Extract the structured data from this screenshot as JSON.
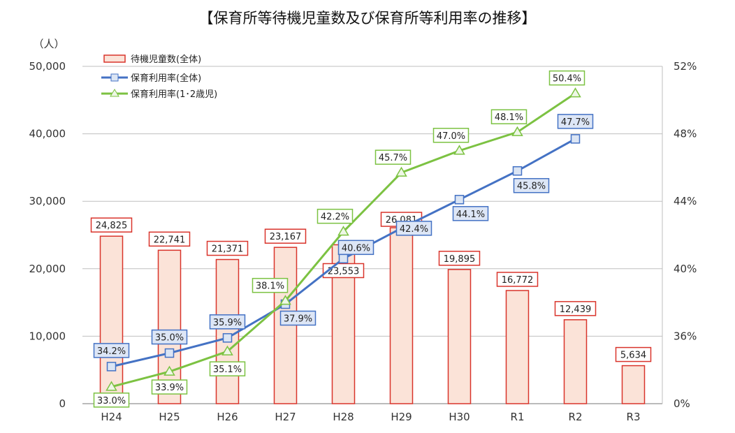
{
  "chart_data": {
    "type": "bar",
    "title": "【保育所等待機児童数及び保育所等利用率の推移】",
    "ylabel_left": "（人）",
    "categories": [
      "H24",
      "H25",
      "H26",
      "H27",
      "H28",
      "H29",
      "H30",
      "R1",
      "R2",
      "R3"
    ],
    "y_left": {
      "ticks": [
        "0",
        "10,000",
        "20,000",
        "30,000",
        "40,000",
        "50,000"
      ],
      "tick_values": [
        0,
        10000,
        20000,
        30000,
        40000,
        50000
      ],
      "ylim": [
        0,
        50000
      ]
    },
    "y_right": {
      "ticks": [
        "0%",
        "36%",
        "40%",
        "44%",
        "48%",
        "52%"
      ],
      "tick_values": [
        32,
        36,
        40,
        44,
        48,
        52
      ],
      "ylim": [
        32,
        52
      ],
      "axis_break": "0% placed at the baseline; scale runs 32%–52%"
    },
    "series": [
      {
        "name": "待機児童数(全体)",
        "type": "bar",
        "axis": "left",
        "color": "#fbe3d8",
        "stroke": "#d9342b",
        "values": [
          24825,
          22741,
          21371,
          23167,
          23553,
          26081,
          19895,
          16772,
          12439,
          5634
        ],
        "labels": [
          "24,825",
          "22,741",
          "21,371",
          "23,167",
          "23,553",
          "26,081",
          "19,895",
          "16,772",
          "12,439",
          "5,634"
        ]
      },
      {
        "name": "保育利用率(全体)",
        "type": "line",
        "axis": "right",
        "color": "#4472c4",
        "marker": "square",
        "values": [
          34.2,
          35.0,
          35.9,
          37.9,
          40.6,
          42.4,
          44.1,
          45.8,
          47.7,
          null
        ],
        "labels": [
          "34.2%",
          "35.0%",
          "35.9%",
          "37.9%",
          "40.6%",
          "42.4%",
          "44.1%",
          "45.8%",
          "47.7%",
          ""
        ]
      },
      {
        "name": "保育利用率(1･2歳児)",
        "type": "line",
        "axis": "right",
        "color": "#7cc242",
        "marker": "triangle",
        "values": [
          33.0,
          33.9,
          35.1,
          38.1,
          42.2,
          45.7,
          47.0,
          48.1,
          50.4,
          null
        ],
        "labels": [
          "33.0%",
          "33.9%",
          "35.1%",
          "38.1%",
          "42.2%",
          "45.7%",
          "47.0%",
          "48.1%",
          "50.4%",
          ""
        ]
      }
    ],
    "legend": [
      "待機児童数(全体)",
      "保育利用率(全体)",
      "保育利用率(1･2歳児)"
    ],
    "legend_position": "top-left",
    "grid": true
  }
}
